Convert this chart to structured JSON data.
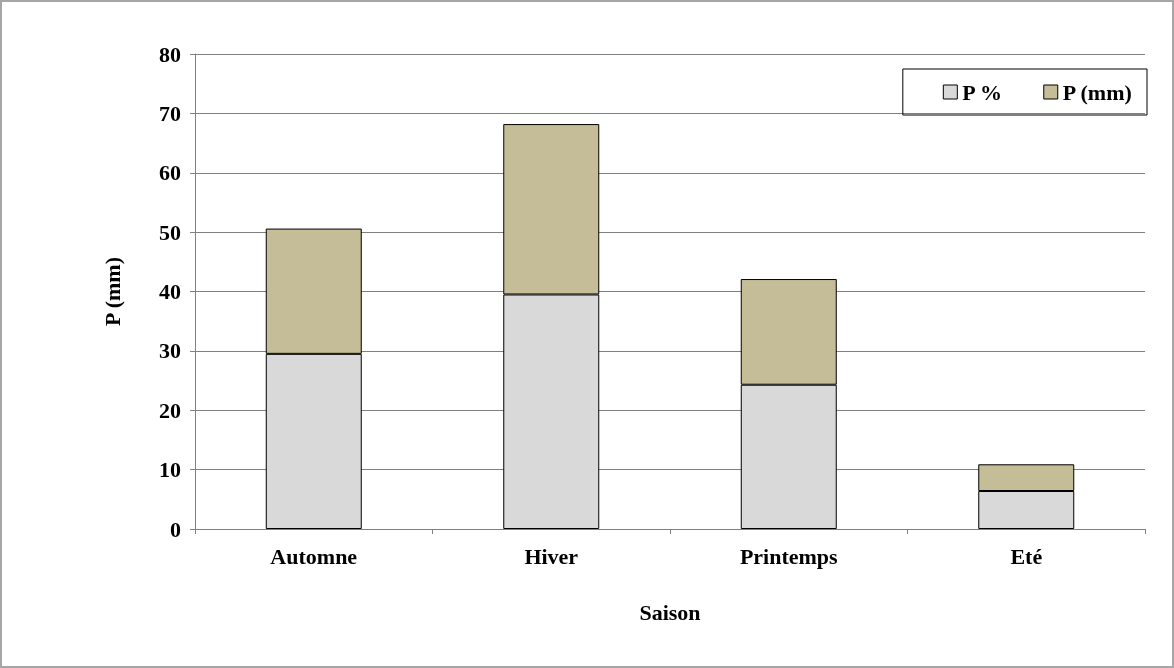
{
  "chart_data": {
    "type": "bar",
    "stacked": true,
    "xlabel": "Saison",
    "ylabel": "P (mm)",
    "categories": [
      "Automne",
      "Hiver",
      "Printemps",
      "Eté"
    ],
    "series": [
      {
        "name": "P %",
        "color": "#d9d9d9",
        "values": [
          29.5,
          39.5,
          24.3,
          6.4
        ]
      },
      {
        "name": "P (mm)",
        "color": "#c4bd97",
        "values": [
          21.1,
          28.7,
          17.8,
          4.5
        ]
      }
    ],
    "ylim": [
      0,
      80
    ],
    "yticks": [
      0,
      10,
      20,
      30,
      40,
      50,
      60,
      70,
      80
    ],
    "grid": "y",
    "legend": "top right"
  }
}
